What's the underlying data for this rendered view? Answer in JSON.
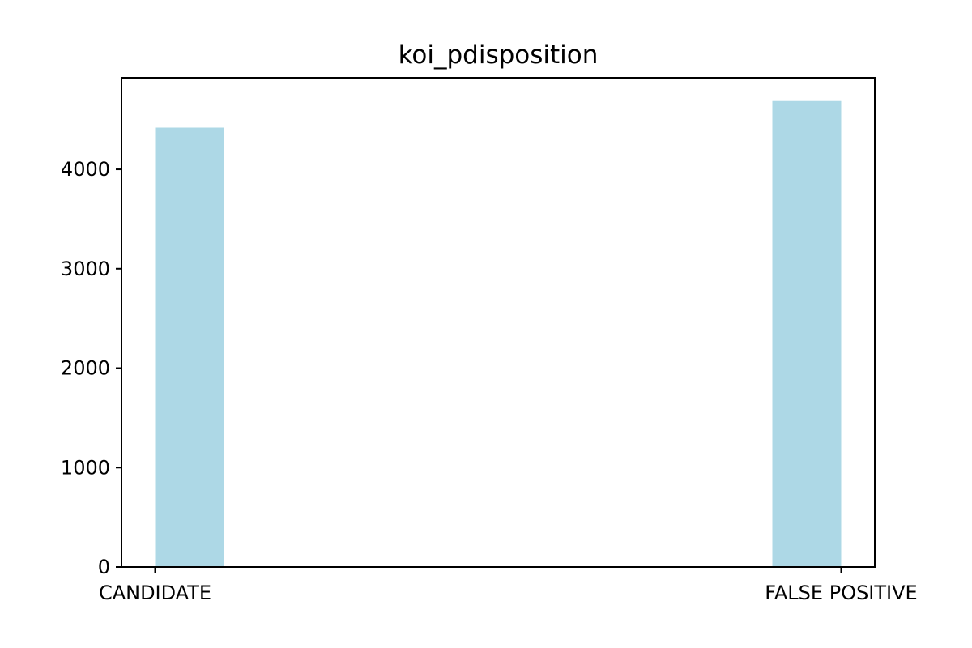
{
  "chart_data": {
    "type": "bar",
    "title": "koi_pdisposition",
    "xlabel": "",
    "ylabel": "",
    "categories": [
      "CANDIDATE",
      "FALSE POSITIVE"
    ],
    "values": [
      4420,
      4687
    ],
    "ylim": [
      0,
      4921
    ],
    "yticks": [
      0,
      1000,
      2000,
      3000,
      4000
    ],
    "grid": false,
    "bar_color": "#add8e6"
  }
}
